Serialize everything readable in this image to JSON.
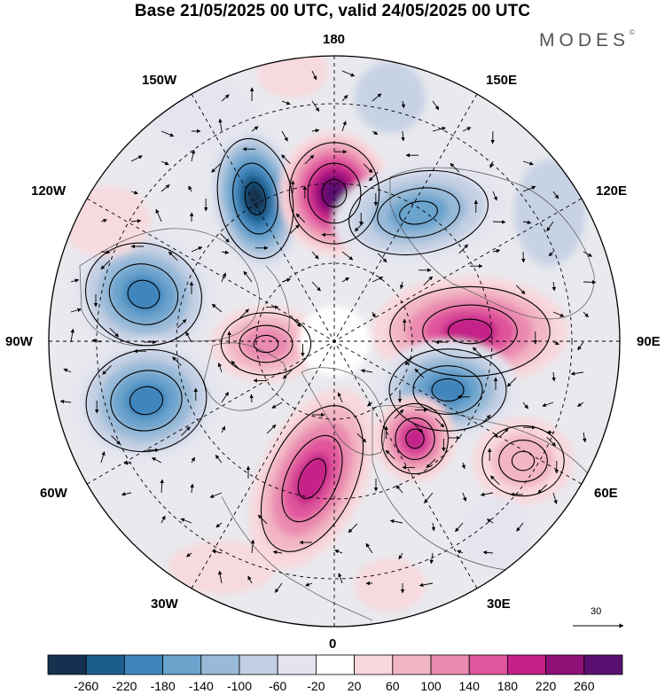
{
  "header": {
    "title": "Base 21/05/2025 00 UTC, valid 24/05/2025 00 UTC",
    "brand": "MODES",
    "brand_mark": "©"
  },
  "map": {
    "projection": "north-polar-stereographic",
    "center_meridian_bottom": "0",
    "longitude_labels": {
      "top": "180",
      "bottom": "0",
      "left": "90W",
      "right": "90E",
      "upper_left_1": "150W",
      "upper_left_2": "120W",
      "upper_right_1": "150E",
      "upper_right_2": "120E",
      "lower_left_1": "60W",
      "lower_left_2": "30W",
      "lower_right_1": "60E",
      "lower_right_2": "30E"
    },
    "anomalies": [
      {
        "sign": "negative",
        "peak": -260
      },
      {
        "sign": "positive",
        "peak": 260
      },
      {
        "sign": "negative",
        "peak": -180
      },
      {
        "sign": "positive",
        "peak": 180
      },
      {
        "sign": "positive",
        "peak": 180
      },
      {
        "sign": "negative",
        "peak": -180
      },
      {
        "sign": "negative",
        "peak": -180
      },
      {
        "sign": "positive",
        "peak": 180
      },
      {
        "sign": "negative",
        "peak": -140
      },
      {
        "sign": "positive",
        "peak": 100
      },
      {
        "sign": "positive",
        "peak": 60
      }
    ]
  },
  "vector_reference": {
    "value": "30"
  },
  "colorbar": {
    "colors": [
      "#14314f",
      "#1b5e8c",
      "#3f86bd",
      "#6aa3cc",
      "#98bad8",
      "#c3cfe3",
      "#e3e4ef",
      "#ffffff",
      "#f8d8dc",
      "#f2b5c3",
      "#ea8ab0",
      "#e0559c",
      "#c42288",
      "#8f1077",
      "#5a1070"
    ],
    "labels": [
      "-260",
      "-220",
      "-180",
      "-140",
      "-100",
      "-60",
      "-20",
      "20",
      "60",
      "100",
      "140",
      "180",
      "220",
      "260"
    ]
  }
}
